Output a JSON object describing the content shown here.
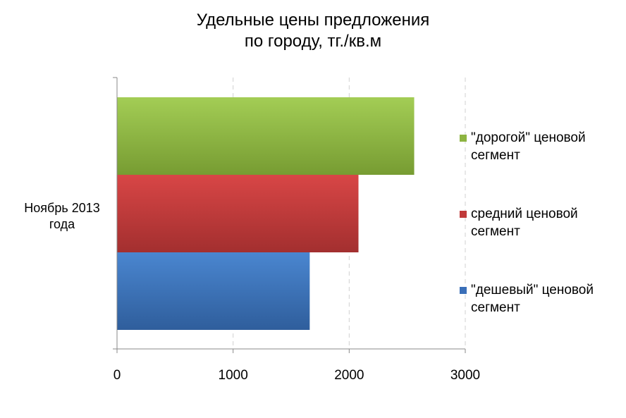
{
  "chart_data": {
    "type": "bar",
    "orientation": "horizontal",
    "title": "Удельные цены предложения\nпо городу, тг./кв.м",
    "title_lines": [
      "Удельные цены предложения",
      "по городу, тг./кв.м"
    ],
    "categories": [
      "Ноябрь 2013\nгода"
    ],
    "category_lines": [
      "Ноябрь 2013",
      "года"
    ],
    "series": [
      {
        "name": "\"дорогой\" ценовой сегмент",
        "legend_lines": [
          "\"дорогой\" ценовой",
          "сегмент"
        ],
        "values": [
          2560
        ],
        "color": "#8db441"
      },
      {
        "name": "средний ценовой сегмент",
        "legend_lines": [
          "средний ценовой",
          "сегмент"
        ],
        "values": [
          2080
        ],
        "color": "#c03a3a"
      },
      {
        "name": "\"дешевый\" ценовой сегмент",
        "legend_lines": [
          "\"дешевый\" ценовой",
          "сегмент"
        ],
        "values": [
          1660
        ],
        "color": "#3a6fb8"
      }
    ],
    "xlim": [
      0,
      3000
    ],
    "xticks": [
      0,
      1000,
      2000,
      3000
    ],
    "grid": true,
    "legend_position": "right"
  }
}
